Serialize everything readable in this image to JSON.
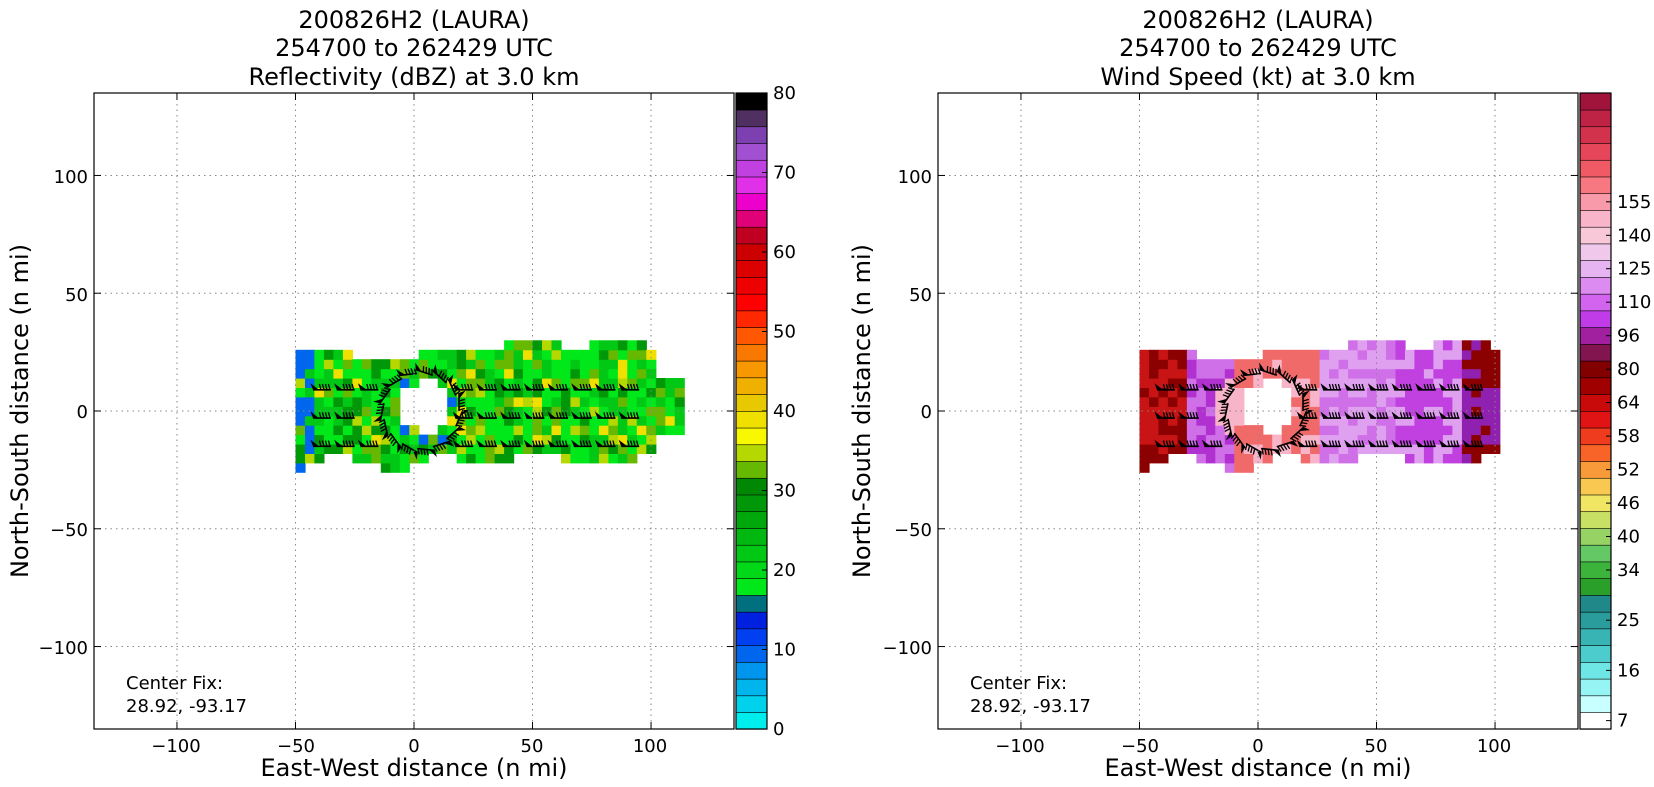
{
  "chart_data": [
    {
      "type": "heatmap",
      "title_lines": [
        "200826H2 (LAURA)",
        "254700 to 262429 UTC",
        "Reflectivity (dBZ) at 3.0 km"
      ],
      "xlabel": "East-West distance (n mi)",
      "ylabel": "North-South distance (n mi)",
      "xlim": [
        -135,
        135
      ],
      "ylim": [
        -135,
        135
      ],
      "xticks": [
        -100,
        -50,
        0,
        50,
        100
      ],
      "yticks": [
        -100,
        -50,
        0,
        50,
        100
      ],
      "tick_labels_x": [
        "−100",
        "−50",
        "0",
        "50",
        "100"
      ],
      "tick_labels_y": [
        "−100",
        "−50",
        "0",
        "50",
        "100"
      ],
      "grid": true,
      "annotation": [
        "Center Fix:",
        "28.92, -93.17"
      ],
      "colorbar": {
        "min": 0,
        "max": 80,
        "tick_values": [
          0,
          10,
          20,
          30,
          40,
          50,
          60,
          70,
          80
        ],
        "tick_labels": [
          "0",
          "10",
          "20",
          "30",
          "40",
          "50",
          "60",
          "70",
          "80"
        ],
        "colors": [
          "#00eded",
          "#00d2ec",
          "#00b4ec",
          "#0096ee",
          "#0066ee",
          "#0040f0",
          "#0020e0",
          "#00707e",
          "#00e81a",
          "#00d818",
          "#00c814",
          "#00b810",
          "#00a80c",
          "#009808",
          "#008804",
          "#66b800",
          "#b4d800",
          "#f8f800",
          "#f0e000",
          "#e8c800",
          "#f0b000",
          "#f89800",
          "#f87800",
          "#ff5800",
          "#ff2800",
          "#ff0000",
          "#ee0000",
          "#dd0000",
          "#cc0000",
          "#c00020",
          "#e00078",
          "#ee00cc",
          "#e030e8",
          "#c040e0",
          "#a050d0",
          "#7d40b0",
          "#503060",
          "#000000"
        ]
      },
      "field_colors": [
        "#00e81a",
        "#00c814",
        "#009808",
        "#66b800",
        "#b4d800",
        "#f0e000",
        "#0066ee"
      ],
      "wind_barbs": true
    },
    {
      "type": "heatmap",
      "title_lines": [
        "200826H2 (LAURA)",
        "254700 to 262429 UTC",
        "Wind Speed (kt) at 3.0 km"
      ],
      "xlabel": "East-West distance (n mi)",
      "ylabel": "North-South distance (n mi)",
      "xlim": [
        -135,
        135
      ],
      "ylim": [
        -135,
        135
      ],
      "xticks": [
        -100,
        -50,
        0,
        50,
        100
      ],
      "yticks": [
        -100,
        -50,
        0,
        50,
        100
      ],
      "tick_labels_x": [
        "−100",
        "−50",
        "0",
        "50",
        "100"
      ],
      "tick_labels_y": [
        "−100",
        "−50",
        "0",
        "50",
        "100"
      ],
      "grid": true,
      "annotation": [
        "Center Fix:",
        "28.92, -93.17"
      ],
      "colorbar": {
        "tick_labels": [
          "7",
          "16",
          "25",
          "34",
          "40",
          "46",
          "52",
          "58",
          "64",
          "80",
          "96",
          "110",
          "125",
          "140",
          "155"
        ],
        "tick_bins": [
          0,
          3,
          6,
          9,
          11,
          13,
          15,
          17,
          19,
          21,
          23,
          25,
          27,
          29,
          31
        ],
        "colors": [
          "#ffffff",
          "#c8ffff",
          "#96f4f4",
          "#6ee6e6",
          "#4ccccc",
          "#38b4b4",
          "#2a9c9c",
          "#208888",
          "#2aa02a",
          "#3cb43c",
          "#64c864",
          "#96d264",
          "#c8e164",
          "#f0e664",
          "#f8c850",
          "#f89a3a",
          "#f86428",
          "#f03c1e",
          "#e01414",
          "#c80a0a",
          "#a00000",
          "#820000",
          "#821450",
          "#a020a0",
          "#c03ce8",
          "#d264f0",
          "#dc8cf0",
          "#e6b4f0",
          "#f0c8ec",
          "#f8c8d8",
          "#f8b4c8",
          "#f89aaa",
          "#f87882",
          "#f05a64",
          "#e6465a",
          "#d2324b",
          "#be2346",
          "#a0143c"
        ]
      },
      "field_colors": [
        "#8b0000",
        "#c81414",
        "#b030d0",
        "#d070e8",
        "#f8b4c8",
        "#f06a6a",
        "#e0a0f0",
        "#c040e0",
        "#9020b0"
      ],
      "wind_barbs": true
    }
  ]
}
